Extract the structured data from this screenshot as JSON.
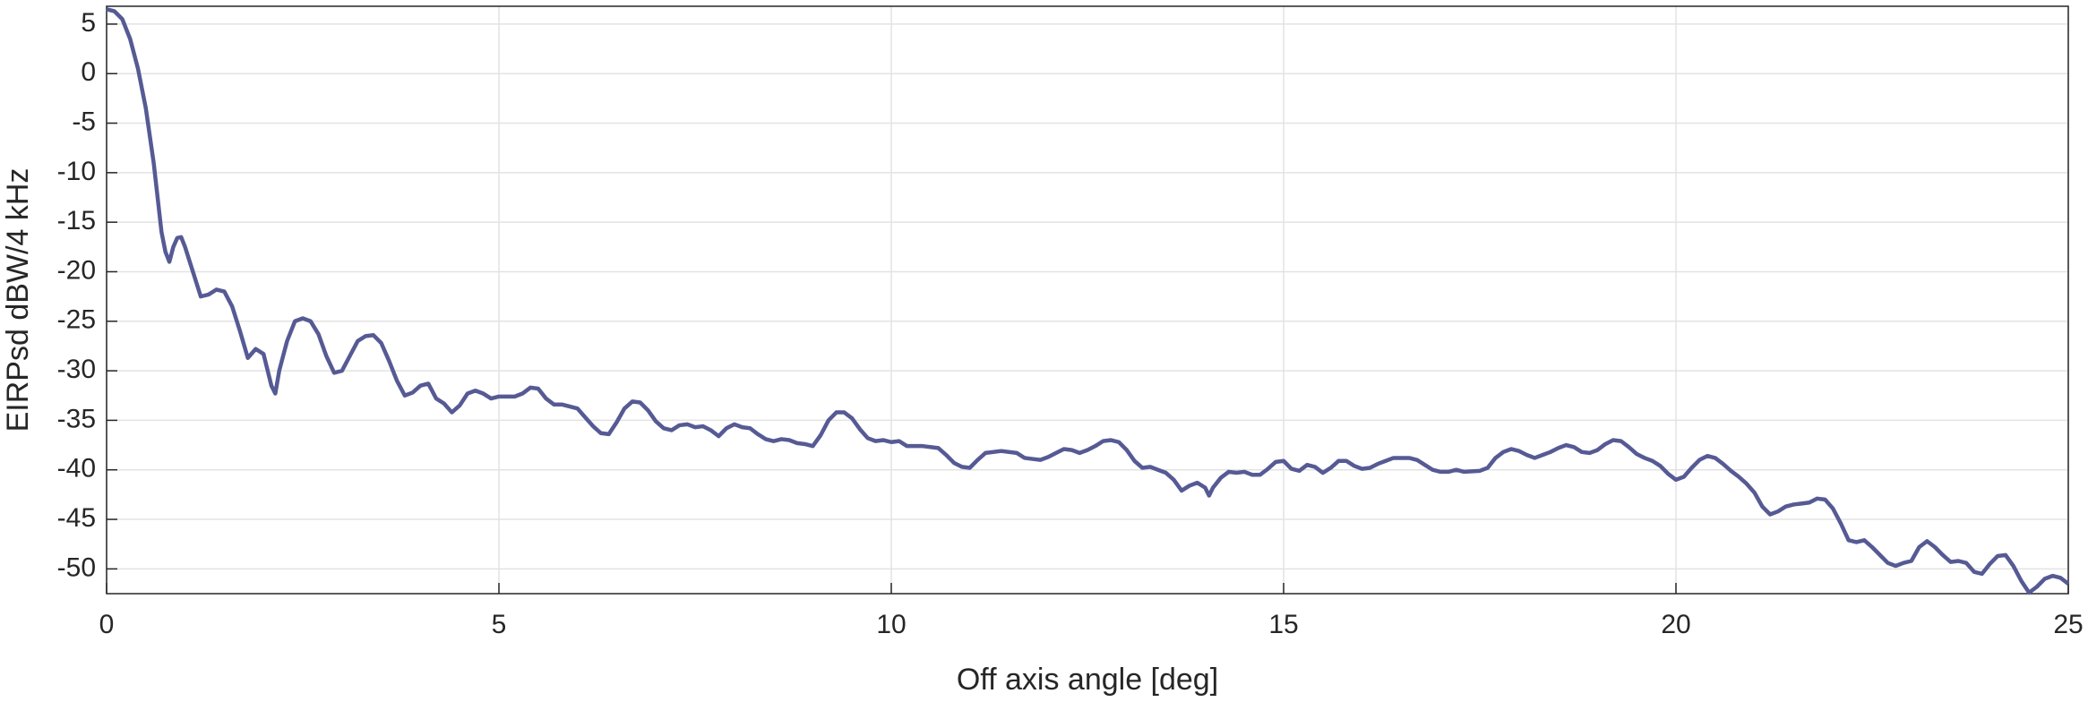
{
  "chart_data": {
    "type": "line",
    "xlabel": "Off axis angle [deg]",
    "ylabel": "EIRPsd dBW/4 kHz",
    "xlim": [
      0,
      25
    ],
    "xticks": [
      0,
      5,
      10,
      15,
      20,
      25
    ],
    "ylim": [
      -52.5,
      6.8
    ],
    "yticks": [
      -50,
      -45,
      -40,
      -35,
      -30,
      -25,
      -20,
      -15,
      -10,
      -5,
      0,
      5
    ],
    "grid": true,
    "series": [
      {
        "color": "#565a94",
        "x": [
          0,
          0.1,
          0.2,
          0.3,
          0.4,
          0.5,
          0.6,
          0.7,
          0.75,
          0.8,
          0.85,
          0.9,
          0.95,
          1.0,
          1.1,
          1.2,
          1.3,
          1.4,
          1.5,
          1.6,
          1.7,
          1.8,
          1.9,
          2.0,
          2.1,
          2.15,
          2.2,
          2.3,
          2.4,
          2.5,
          2.6,
          2.7,
          2.8,
          2.9,
          3.0,
          3.1,
          3.2,
          3.3,
          3.4,
          3.5,
          3.6,
          3.7,
          3.8,
          3.9,
          4.0,
          4.1,
          4.2,
          4.3,
          4.4,
          4.5,
          4.6,
          4.7,
          4.8,
          4.9,
          5.0,
          5.2,
          5.3,
          5.4,
          5.5,
          5.6,
          5.7,
          5.8,
          5.9,
          6.0,
          6.1,
          6.2,
          6.3,
          6.4,
          6.5,
          6.6,
          6.7,
          6.8,
          6.9,
          7.0,
          7.1,
          7.2,
          7.3,
          7.4,
          7.5,
          7.6,
          7.7,
          7.8,
          7.9,
          8.0,
          8.1,
          8.2,
          8.3,
          8.4,
          8.5,
          8.6,
          8.7,
          8.8,
          8.9,
          9.0,
          9.1,
          9.2,
          9.3,
          9.4,
          9.5,
          9.6,
          9.7,
          9.8,
          9.9,
          10.0,
          10.1,
          10.2,
          10.4,
          10.6,
          10.7,
          10.8,
          10.9,
          11.0,
          11.1,
          11.2,
          11.4,
          11.6,
          11.7,
          11.8,
          11.9,
          12.0,
          12.1,
          12.2,
          12.3,
          12.4,
          12.5,
          12.6,
          12.7,
          12.8,
          12.9,
          13.0,
          13.1,
          13.2,
          13.3,
          13.4,
          13.5,
          13.6,
          13.7,
          13.8,
          13.9,
          14.0,
          14.05,
          14.1,
          14.2,
          14.3,
          14.4,
          14.5,
          14.6,
          14.7,
          14.8,
          14.9,
          15.0,
          15.1,
          15.2,
          15.3,
          15.4,
          15.5,
          15.6,
          15.7,
          15.8,
          15.9,
          16.0,
          16.1,
          16.2,
          16.3,
          16.4,
          16.6,
          16.7,
          16.8,
          16.9,
          17.0,
          17.1,
          17.2,
          17.3,
          17.5,
          17.6,
          17.7,
          17.8,
          17.9,
          18.0,
          18.1,
          18.2,
          18.3,
          18.4,
          18.5,
          18.6,
          18.7,
          18.8,
          18.9,
          19.0,
          19.1,
          19.2,
          19.3,
          19.4,
          19.5,
          19.6,
          19.7,
          19.8,
          19.9,
          20.0,
          20.1,
          20.2,
          20.3,
          20.4,
          20.5,
          20.6,
          20.7,
          20.8,
          20.9,
          21.0,
          21.1,
          21.2,
          21.3,
          21.4,
          21.5,
          21.6,
          21.7,
          21.8,
          21.9,
          22.0,
          22.1,
          22.2,
          22.3,
          22.4,
          22.5,
          22.6,
          22.7,
          22.8,
          22.9,
          23.0,
          23.1,
          23.2,
          23.3,
          23.4,
          23.5,
          23.6,
          23.7,
          23.8,
          23.9,
          24.0,
          24.1,
          24.2,
          24.3,
          24.4,
          24.5,
          24.6,
          24.7,
          24.8,
          24.9,
          25.0
        ],
        "values": [
          6.5,
          6.3,
          5.5,
          3.5,
          0.5,
          -3.5,
          -9,
          -16,
          -18,
          -19,
          -17.5,
          -16.6,
          -16.5,
          -17.5,
          -20,
          -22.5,
          -22.3,
          -21.8,
          -22,
          -23.5,
          -26,
          -28.7,
          -27.8,
          -28.3,
          -31.5,
          -32.3,
          -30,
          -27,
          -25,
          -24.7,
          -25,
          -26.3,
          -28.5,
          -30.2,
          -30,
          -28.5,
          -27,
          -26.5,
          -26.4,
          -27.2,
          -29,
          -31,
          -32.5,
          -32.2,
          -31.5,
          -31.3,
          -32.8,
          -33.3,
          -34.2,
          -33.5,
          -32.3,
          -32,
          -32.3,
          -32.8,
          -32.6,
          -32.6,
          -32.3,
          -31.7,
          -31.8,
          -32.8,
          -33.4,
          -33.4,
          -33.6,
          -33.8,
          -34.7,
          -35.6,
          -36.3,
          -36.4,
          -35.2,
          -33.8,
          -33.1,
          -33.2,
          -34,
          -35.1,
          -35.8,
          -36,
          -35.5,
          -35.4,
          -35.7,
          -35.6,
          -36,
          -36.6,
          -35.8,
          -35.4,
          -35.7,
          -35.8,
          -36.4,
          -36.9,
          -37.1,
          -36.9,
          -37,
          -37.3,
          -37.4,
          -37.6,
          -36.5,
          -35,
          -34.2,
          -34.2,
          -34.8,
          -35.9,
          -36.8,
          -37.1,
          -37,
          -37.2,
          -37.1,
          -37.6,
          -37.6,
          -37.8,
          -38.5,
          -39.3,
          -39.7,
          -39.8,
          -39,
          -38.3,
          -38.1,
          -38.3,
          -38.8,
          -38.9,
          -39,
          -38.7,
          -38.3,
          -37.9,
          -38,
          -38.3,
          -38,
          -37.6,
          -37.1,
          -37,
          -37.2,
          -38,
          -39.1,
          -39.8,
          -39.7,
          -40,
          -40.3,
          -41,
          -42.1,
          -41.6,
          -41.3,
          -41.8,
          -42.6,
          -41.8,
          -40.8,
          -40.2,
          -40.3,
          -40.2,
          -40.5,
          -40.5,
          -39.9,
          -39.2,
          -39.1,
          -39.9,
          -40.1,
          -39.5,
          -39.7,
          -40.3,
          -39.8,
          -39.1,
          -39.1,
          -39.6,
          -39.9,
          -39.8,
          -39.4,
          -39.1,
          -38.8,
          -38.8,
          -39,
          -39.5,
          -40,
          -40.2,
          -40.2,
          -40,
          -40.2,
          -40.1,
          -39.8,
          -38.8,
          -38.2,
          -37.9,
          -38.1,
          -38.5,
          -38.8,
          -38.5,
          -38.2,
          -37.8,
          -37.5,
          -37.7,
          -38.2,
          -38.3,
          -38,
          -37.4,
          -37,
          -37.1,
          -37.7,
          -38.4,
          -38.8,
          -39.1,
          -39.6,
          -40.4,
          -41,
          -40.7,
          -39.8,
          -39,
          -38.6,
          -38.8,
          -39.4,
          -40.1,
          -40.7,
          -41.4,
          -42.3,
          -43.7,
          -44.5,
          -44.2,
          -43.7,
          -43.5,
          -43.4,
          -43.3,
          -42.9,
          -43,
          -43.9,
          -45.4,
          -47.1,
          -47.3,
          -47.1,
          -47.8,
          -48.6,
          -49.4,
          -49.7,
          -49.4,
          -49.2,
          -47.8,
          -47.2,
          -47.8,
          -48.6,
          -49.3,
          -49.2,
          -49.4,
          -50.3,
          -50.5,
          -49.5,
          -48.7,
          -48.6,
          -49.7,
          -51.2,
          -52.4,
          -51.8,
          -51,
          -50.7,
          -50.9,
          -51.5
        ]
      }
    ]
  }
}
